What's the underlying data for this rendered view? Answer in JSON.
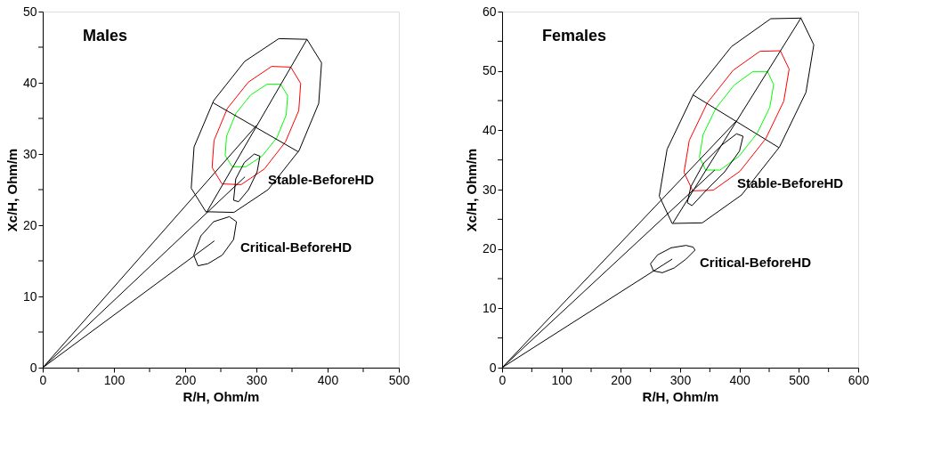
{
  "chart_data": [
    {
      "type": "line",
      "title": "Males",
      "xlabel": "R/H, Ohm/m",
      "ylabel": "Xc/H, Ohm/m",
      "xlim": [
        0,
        500
      ],
      "ylim": [
        0,
        50
      ],
      "xticks": [
        0,
        {
          "value": 50,
          "label": null
        },
        100,
        {
          "value": 150,
          "label": null
        },
        200,
        {
          "value": 250,
          "label": null
        },
        300,
        {
          "value": 350,
          "label": null
        },
        400,
        {
          "value": 450,
          "label": null
        },
        500
      ],
      "yticks": [
        0,
        {
          "value": 5,
          "label": null
        },
        10,
        {
          "value": 15,
          "label": null
        },
        20,
        {
          "value": 25,
          "label": null
        },
        30,
        {
          "value": 35,
          "label": null
        },
        40,
        {
          "value": 45,
          "label": null
        },
        50
      ],
      "grid": false,
      "legend": false,
      "marker": "none",
      "line_style": "solid",
      "series": [
        {
          "color": "#000000",
          "x": [
            208.5,
            212.5,
            240,
            283.5,
            331.5,
            371,
            391.5
          ],
          "values": [
            25.2,
            31.0,
            37.5,
            43.0,
            46.2,
            46.1,
            42.8
          ]
        },
        {
          "color": "#000000",
          "x": [
            208.5,
            229,
            268.5,
            316.5,
            360,
            387.5,
            391.5
          ],
          "values": [
            25.2,
            21.9,
            21.8,
            25.0,
            30.5,
            37.1,
            42.8
          ]
        },
        {
          "color": "#ff0000",
          "x": [
            237.8,
            240.5,
            259.2,
            288.8,
            321.4,
            348.3,
            362.2
          ],
          "values": [
            28.1,
            31.9,
            36.4,
            40.1,
            42.3,
            42.2,
            39.9
          ]
        },
        {
          "color": "#ff0000",
          "x": [
            237.8,
            251.7,
            278.6,
            311.2,
            340.8,
            359.5,
            362.2
          ],
          "values": [
            28.1,
            25.8,
            25.7,
            27.9,
            31.7,
            36.1,
            39.9
          ]
        },
        {
          "color": "#00ff00",
          "x": [
            256.2,
            258.1,
            271.2,
            292.1,
            315,
            334,
            343.8
          ],
          "values": [
            29.8,
            32.5,
            35.7,
            38.3,
            39.8,
            39.8,
            38.2
          ]
        },
        {
          "color": "#00ff00",
          "x": [
            256.2,
            266,
            285,
            307.9,
            328.8,
            341.9,
            343.8
          ],
          "values": [
            29.8,
            28.2,
            28.2,
            29.7,
            32.3,
            35.5,
            38.2
          ]
        },
        {
          "color": "#000000",
          "x": [
            230,
            371
          ],
          "values": [
            21.8,
            46.1
          ]
        },
        {
          "color": "#000000",
          "x": [
            239,
            359
          ],
          "values": [
            37.2,
            30.3
          ]
        },
        {
          "color": "#000000",
          "x": [
            268,
            271,
            283,
            297,
            305
          ],
          "values": [
            23.5,
            26.5,
            28.8,
            30,
            29.7
          ]
        },
        {
          "color": "#000000",
          "x": [
            268,
            275,
            289,
            301,
            305
          ],
          "values": [
            23.5,
            23.3,
            25,
            27.5,
            29.7
          ]
        },
        {
          "color": "#000000",
          "x": [
            212,
            222,
            240,
            262,
            272
          ],
          "values": [
            15.8,
            18.5,
            20.5,
            21.2,
            20.5
          ]
        },
        {
          "color": "#000000",
          "x": [
            212,
            218,
            232,
            252,
            268,
            272
          ],
          "values": [
            15.8,
            14.3,
            14.6,
            15.8,
            18,
            20.5
          ]
        },
        {
          "color": "#000000",
          "x": [
            0,
            300
          ],
          "values": [
            0,
            34
          ]
        },
        {
          "color": "#000000",
          "x": [
            0,
            284
          ],
          "values": [
            0,
            26.8
          ]
        },
        {
          "color": "#000000",
          "x": [
            0,
            241
          ],
          "values": [
            0,
            17.8
          ]
        }
      ],
      "annotations": [
        "Stable-BeforeHD",
        "Critical-BeforeHD"
      ]
    },
    {
      "type": "line",
      "title": "Females",
      "xlabel": "R/H, Ohm/m",
      "ylabel": "Xc/H, Ohm/m",
      "xlim": [
        0,
        600
      ],
      "ylim": [
        0,
        60
      ],
      "xticks": [
        0,
        {
          "value": 50,
          "label": null
        },
        100,
        {
          "value": 150,
          "label": null
        },
        200,
        {
          "value": 250,
          "label": null
        },
        300,
        {
          "value": 350,
          "label": null
        },
        400,
        {
          "value": 450,
          "label": null
        },
        500,
        {
          "value": 550,
          "label": null
        },
        600
      ],
      "yticks": [
        0,
        {
          "value": 5,
          "label": null
        },
        10,
        {
          "value": 15,
          "label": null
        },
        20,
        {
          "value": 25,
          "label": null
        },
        30,
        {
          "value": 35,
          "label": null
        },
        40,
        {
          "value": 45,
          "label": null
        },
        50,
        {
          "value": 55,
          "label": null
        },
        60
      ],
      "grid": false,
      "legend": false,
      "marker": "none",
      "line_style": "solid",
      "series": [
        {
          "color": "#000000",
          "x": [
            264.8,
            278,
            322.5,
            386.5,
            452.7,
            503.5,
            525.2
          ],
          "values": [
            28.9,
            36.8,
            46.1,
            54.1,
            58.8,
            58.9,
            54.4
          ]
        },
        {
          "color": "#000000",
          "x": [
            264.8,
            286.5,
            337.3,
            403.5,
            467.5,
            512,
            525.2
          ],
          "values": [
            28.9,
            24.3,
            24.4,
            29.1,
            37.2,
            46.4,
            54.4
          ]
        },
        {
          "color": "#ff0000",
          "x": [
            306.5,
            315.4,
            345.7,
            389.2,
            434.3,
            468.8,
            483.6
          ],
          "values": [
            32.9,
            38.3,
            44.6,
            50.1,
            53.3,
            53.4,
            50.3
          ]
        },
        {
          "color": "#ff0000",
          "x": [
            306.5,
            321.2,
            355.8,
            400.8,
            444.3,
            474.6,
            483.6
          ],
          "values": [
            32.9,
            29.8,
            29.9,
            33.1,
            38.6,
            44.9,
            50.3
          ]
        },
        {
          "color": "#00ff00",
          "x": [
            332.5,
            338.8,
            360.2,
            390.9,
            422.7,
            447.1,
            457.5
          ],
          "values": [
            35.5,
            39.3,
            43.7,
            47.6,
            49.9,
            49.9,
            47.7
          ]
        },
        {
          "color": "#00ff00",
          "x": [
            332.5,
            342.9,
            367.3,
            399,
            429.8,
            451.1,
            457.5
          ],
          "values": [
            35.5,
            33.3,
            33.3,
            35.6,
            39.5,
            43.9,
            47.7
          ]
        },
        {
          "color": "#000000",
          "x": [
            288,
            504
          ],
          "values": [
            24.4,
            59.0
          ]
        },
        {
          "color": "#000000",
          "x": [
            321,
            466
          ],
          "values": [
            46.0,
            37.1
          ]
        },
        {
          "color": "#000000",
          "x": [
            312,
            318,
            340,
            370,
            395,
            406
          ],
          "values": [
            27.8,
            30.5,
            34.5,
            37.5,
            39.4,
            39
          ]
        },
        {
          "color": "#000000",
          "x": [
            312,
            320,
            345,
            375,
            400,
            406
          ],
          "values": [
            27.8,
            27.3,
            30,
            33,
            36.5,
            39
          ]
        },
        {
          "color": "#000000",
          "x": [
            250,
            262,
            285,
            310,
            322,
            325
          ],
          "values": [
            17.5,
            19,
            20.2,
            20.6,
            20.3,
            19.8
          ]
        },
        {
          "color": "#000000",
          "x": [
            250,
            255,
            270,
            290,
            310,
            325
          ],
          "values": [
            17.5,
            16.3,
            16,
            16.8,
            18.3,
            19.8
          ]
        },
        {
          "color": "#000000",
          "x": [
            0,
            395
          ],
          "values": [
            0,
            41.6
          ]
        },
        {
          "color": "#000000",
          "x": [
            0,
            358.3
          ],
          "values": [
            0,
            33.3
          ]
        },
        {
          "color": "#000000",
          "x": [
            0,
            286.7
          ],
          "values": [
            0,
            18.3
          ]
        }
      ],
      "annotations": [
        "Stable-BeforeHD",
        "Critical-BeforeHD"
      ]
    }
  ]
}
